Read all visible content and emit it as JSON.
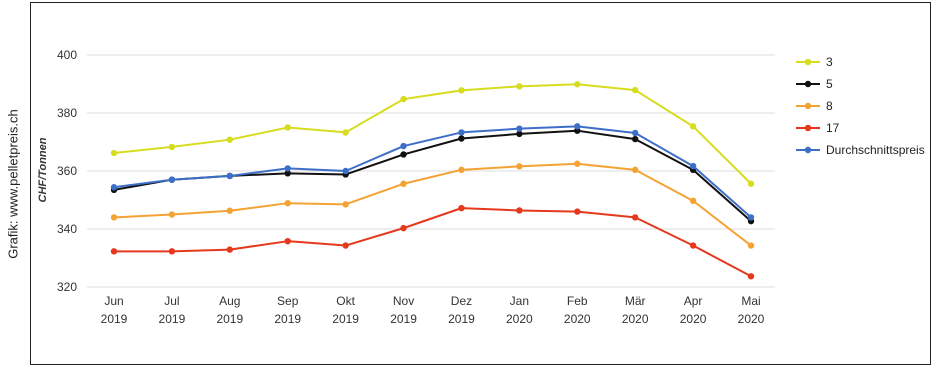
{
  "credit": "Grafik: www.pelletpreis.ch",
  "chart_data": {
    "type": "line",
    "title": "",
    "xlabel": "",
    "ylabel": "CHF/Tonnen",
    "ylim": [
      320,
      400
    ],
    "yticks": [
      320,
      340,
      360,
      380,
      400
    ],
    "grid": true,
    "legend_position": "right",
    "categories": [
      [
        "Jun",
        "2019"
      ],
      [
        "Jul",
        "2019"
      ],
      [
        "Aug",
        "2019"
      ],
      [
        "Sep",
        "2019"
      ],
      [
        "Okt",
        "2019"
      ],
      [
        "Nov",
        "2019"
      ],
      [
        "Dez",
        "2019"
      ],
      [
        "Jan",
        "2020"
      ],
      [
        "Feb",
        "2020"
      ],
      [
        "Mär",
        "2020"
      ],
      [
        "Apr",
        "2020"
      ],
      [
        "Mai",
        "2020"
      ]
    ],
    "series": [
      {
        "name": "3",
        "color": "#d7dc1f",
        "values": [
          366.2,
          368.3,
          370.8,
          375.0,
          373.3,
          384.8,
          387.8,
          389.2,
          389.9,
          387.9,
          375.4,
          355.6
        ]
      },
      {
        "name": "5",
        "color": "#111111",
        "values": [
          353.5,
          357.0,
          358.3,
          359.2,
          358.8,
          365.7,
          371.2,
          372.8,
          373.9,
          371.0,
          360.4,
          342.7
        ]
      },
      {
        "name": "8",
        "color": "#f5a234",
        "values": [
          344.0,
          345.0,
          346.3,
          348.9,
          348.5,
          355.6,
          360.4,
          361.6,
          362.5,
          360.4,
          349.7,
          334.3
        ]
      },
      {
        "name": "17",
        "color": "#e5381d",
        "values": [
          332.3,
          332.3,
          332.9,
          335.8,
          334.3,
          340.3,
          347.2,
          346.4,
          346.0,
          344.0,
          334.3,
          323.7
        ]
      },
      {
        "name": "Durchschnittspreis",
        "color": "#3d6fc8",
        "values": [
          354.4,
          357.0,
          358.3,
          360.9,
          360.0,
          368.6,
          373.3,
          374.6,
          375.4,
          373.1,
          361.7,
          344.0
        ]
      }
    ]
  }
}
